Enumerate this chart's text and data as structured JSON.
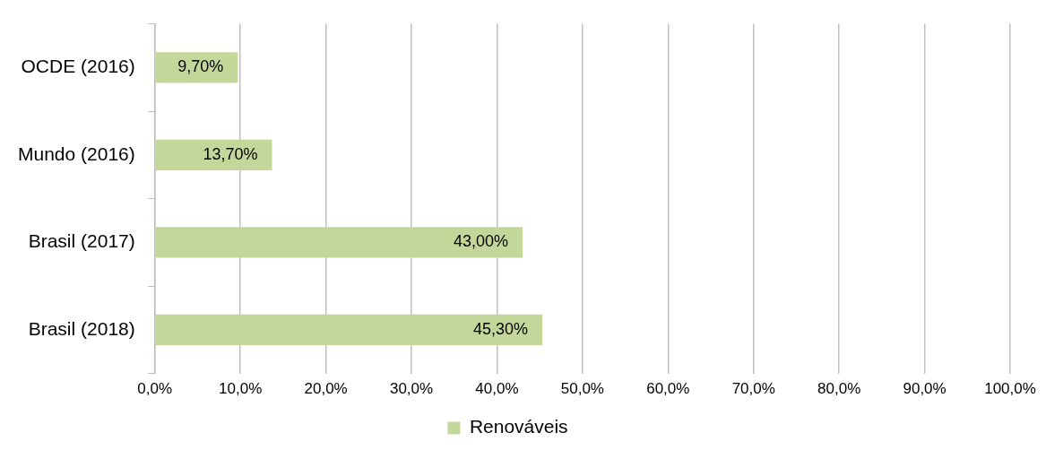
{
  "chart_data": {
    "type": "bar",
    "orientation": "horizontal",
    "categories": [
      "OCDE (2016)",
      "Mundo (2016)",
      "Brasil (2017)",
      "Brasil (2018)"
    ],
    "series": [
      {
        "name": "Renováveis",
        "color": "#c4d79b",
        "values": [
          9.7,
          13.7,
          43.0,
          45.3
        ],
        "value_labels": [
          "9,70%",
          "13,70%",
          "43,00%",
          "45,30%"
        ]
      }
    ],
    "xlim": [
      0,
      100
    ],
    "xticks": [
      {
        "value": 0,
        "label": "0,0%"
      },
      {
        "value": 10,
        "label": "10,0%"
      },
      {
        "value": 20,
        "label": "20,0%"
      },
      {
        "value": 30,
        "label": "30,0%"
      },
      {
        "value": 40,
        "label": "40,0%"
      },
      {
        "value": 50,
        "label": "50,0%"
      },
      {
        "value": 60,
        "label": "60,0%"
      },
      {
        "value": 70,
        "label": "70,0%"
      },
      {
        "value": 80,
        "label": "80,0%"
      },
      {
        "value": 90,
        "label": "90,0%"
      },
      {
        "value": 100,
        "label": "100,0%"
      }
    ],
    "grid": "x",
    "legend": "bottom"
  }
}
